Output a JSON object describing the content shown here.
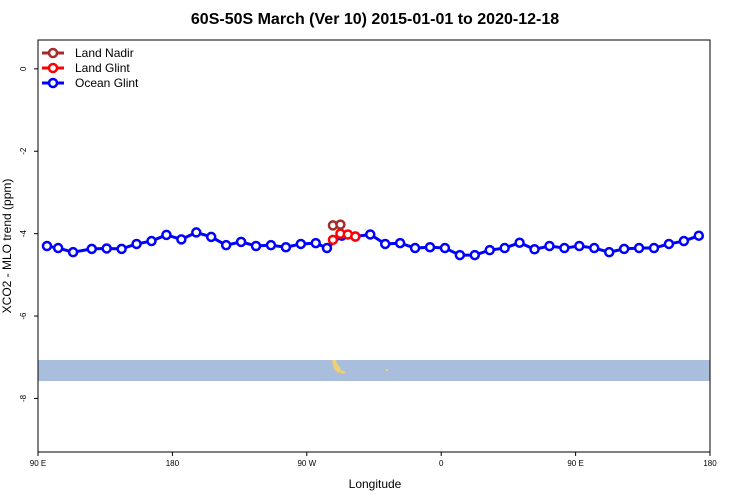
{
  "chart_data": {
    "type": "line",
    "title": "60S-50S March (Ver 10)   2015-01-01 to 2020-12-18",
    "xlabel": "Longitude",
    "ylabel": "XCO2 - MLO trend (ppm)",
    "xlim": [
      90,
      540
    ],
    "ylim": [
      -9.3,
      0.7
    ],
    "x_ticks": [
      {
        "value": 90,
        "label": "90 E"
      },
      {
        "value": 180,
        "label": "180"
      },
      {
        "value": 270,
        "label": "90 W"
      },
      {
        "value": 360,
        "label": "0"
      },
      {
        "value": 450,
        "label": "90 E"
      },
      {
        "value": 540,
        "label": "180"
      }
    ],
    "y_ticks": [
      {
        "value": 0,
        "label": "0"
      },
      {
        "value": -2,
        "label": "-2"
      },
      {
        "value": -4,
        "label": "-4"
      },
      {
        "value": -6,
        "label": "-6"
      },
      {
        "value": -8,
        "label": "-8"
      }
    ],
    "legend_position": "top-left",
    "grid": false,
    "series": [
      {
        "name": "Land Nadir",
        "color": "#a52a2a",
        "x": [
          287.5,
          292.5
        ],
        "y": [
          -3.8,
          -3.78
        ]
      },
      {
        "name": "Land Glint",
        "color": "#ff0000",
        "x": [
          287.5,
          292.5,
          297.5,
          302.5
        ],
        "y": [
          -4.15,
          -4.0,
          -4.02,
          -4.07
        ]
      },
      {
        "name": "Ocean Glint",
        "color": "#0000ff",
        "x": [
          96,
          103.5,
          113.5,
          126,
          136,
          146,
          156,
          166,
          176,
          186,
          196,
          206,
          216,
          226,
          236,
          246,
          256,
          266,
          276,
          283.5,
          293.5,
          302.5,
          312.5,
          322.5,
          332.5,
          342.5,
          352.5,
          362.5,
          372.5,
          382.5,
          392.5,
          402.5,
          412.5,
          422.5,
          432.5,
          442.5,
          452.5,
          462.5,
          472.5,
          482.5,
          492.5,
          502.5,
          512.5,
          522.5,
          532.5
        ],
        "y": [
          -4.3,
          -4.35,
          -4.45,
          -4.37,
          -4.36,
          -4.37,
          -4.25,
          -4.18,
          -4.03,
          -4.14,
          -3.97,
          -4.08,
          -4.28,
          -4.2,
          -4.3,
          -4.28,
          -4.33,
          -4.25,
          -4.23,
          -4.35,
          -4.05,
          -4.07,
          -4.02,
          -4.25,
          -4.23,
          -4.35,
          -4.33,
          -4.35,
          -4.52,
          -4.52,
          -4.4,
          -4.35,
          -4.22,
          -4.38,
          -4.3,
          -4.35,
          -4.3,
          -4.35,
          -4.45,
          -4.37,
          -4.35,
          -4.35,
          -4.25,
          -4.18,
          -4.05
        ]
      }
    ],
    "background_map": {
      "ocean_color": "#a8bedc",
      "land_color": "#f0d070"
    }
  }
}
